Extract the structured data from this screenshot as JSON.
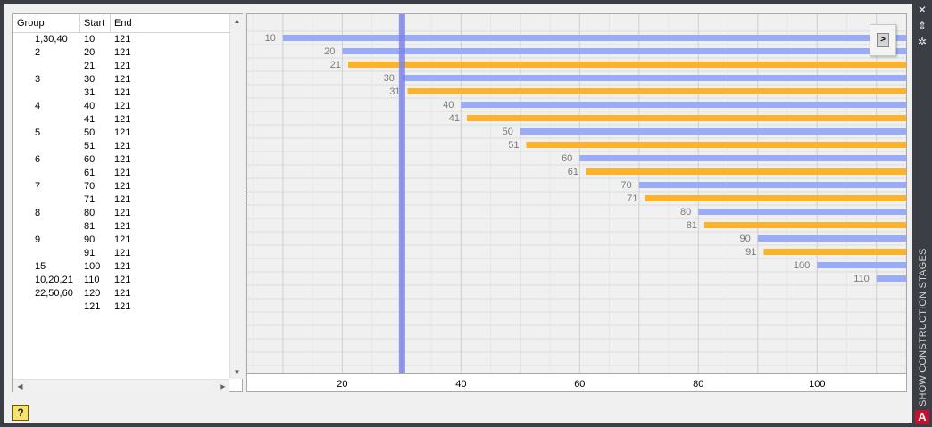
{
  "palette": {
    "title": "SHOW CONSTRUCTION STAGES",
    "close_icon": "close-icon",
    "autohide_icon": "autohide-icon",
    "properties_icon": "properties-icon",
    "logo_letter": "A"
  },
  "list": {
    "columns": [
      "Group",
      "Start",
      "End"
    ],
    "rows": [
      {
        "group": "1,30,40",
        "start": "10",
        "end": "121"
      },
      {
        "group": "2",
        "start": "20",
        "end": "121"
      },
      {
        "group": "",
        "start": "21",
        "end": "121"
      },
      {
        "group": "3",
        "start": "30",
        "end": "121"
      },
      {
        "group": "",
        "start": "31",
        "end": "121"
      },
      {
        "group": "4",
        "start": "40",
        "end": "121"
      },
      {
        "group": "",
        "start": "41",
        "end": "121"
      },
      {
        "group": "5",
        "start": "50",
        "end": "121"
      },
      {
        "group": "",
        "start": "51",
        "end": "121"
      },
      {
        "group": "6",
        "start": "60",
        "end": "121"
      },
      {
        "group": "",
        "start": "61",
        "end": "121"
      },
      {
        "group": "7",
        "start": "70",
        "end": "121"
      },
      {
        "group": "",
        "start": "71",
        "end": "121"
      },
      {
        "group": "8",
        "start": "80",
        "end": "121"
      },
      {
        "group": "",
        "start": "81",
        "end": "121"
      },
      {
        "group": "9",
        "start": "90",
        "end": "121"
      },
      {
        "group": "",
        "start": "91",
        "end": "121"
      },
      {
        "group": "15",
        "start": "100",
        "end": "121"
      },
      {
        "group": "10,20,21",
        "start": "110",
        "end": "121"
      },
      {
        "group": "22,50,60",
        "start": "120",
        "end": "121"
      },
      {
        "group": "",
        "start": "121",
        "end": "121"
      }
    ]
  },
  "nav": {
    "next_label": ">"
  },
  "help": {
    "icon": "help-icon",
    "glyph": "?"
  },
  "chart_data": {
    "type": "bar",
    "orientation": "horizontal",
    "x_ticks": [
      20,
      40,
      60,
      80,
      100
    ],
    "xlim": [
      4,
      115
    ],
    "cursor_x": 30,
    "colors": {
      "even": "#9aacf8",
      "odd": "#fcb22a",
      "cursor": "#7e85e8",
      "grid_major": "#cfcfcf",
      "grid_minor": "#e6e6e6"
    },
    "bars": [
      {
        "label": "10",
        "start": 10,
        "end": 121,
        "kind": "even"
      },
      {
        "label": "20",
        "start": 20,
        "end": 121,
        "kind": "even"
      },
      {
        "label": "21",
        "start": 21,
        "end": 121,
        "kind": "odd"
      },
      {
        "label": "30",
        "start": 30,
        "end": 121,
        "kind": "even"
      },
      {
        "label": "31",
        "start": 31,
        "end": 121,
        "kind": "odd"
      },
      {
        "label": "40",
        "start": 40,
        "end": 121,
        "kind": "even"
      },
      {
        "label": "41",
        "start": 41,
        "end": 121,
        "kind": "odd"
      },
      {
        "label": "50",
        "start": 50,
        "end": 121,
        "kind": "even"
      },
      {
        "label": "51",
        "start": 51,
        "end": 121,
        "kind": "odd"
      },
      {
        "label": "60",
        "start": 60,
        "end": 121,
        "kind": "even"
      },
      {
        "label": "61",
        "start": 61,
        "end": 121,
        "kind": "odd"
      },
      {
        "label": "70",
        "start": 70,
        "end": 121,
        "kind": "even"
      },
      {
        "label": "71",
        "start": 71,
        "end": 121,
        "kind": "odd"
      },
      {
        "label": "80",
        "start": 80,
        "end": 121,
        "kind": "even"
      },
      {
        "label": "81",
        "start": 81,
        "end": 121,
        "kind": "odd"
      },
      {
        "label": "90",
        "start": 90,
        "end": 121,
        "kind": "even"
      },
      {
        "label": "91",
        "start": 91,
        "end": 121,
        "kind": "odd"
      },
      {
        "label": "100",
        "start": 100,
        "end": 121,
        "kind": "even"
      },
      {
        "label": "110",
        "start": 110,
        "end": 121,
        "kind": "even"
      }
    ]
  }
}
